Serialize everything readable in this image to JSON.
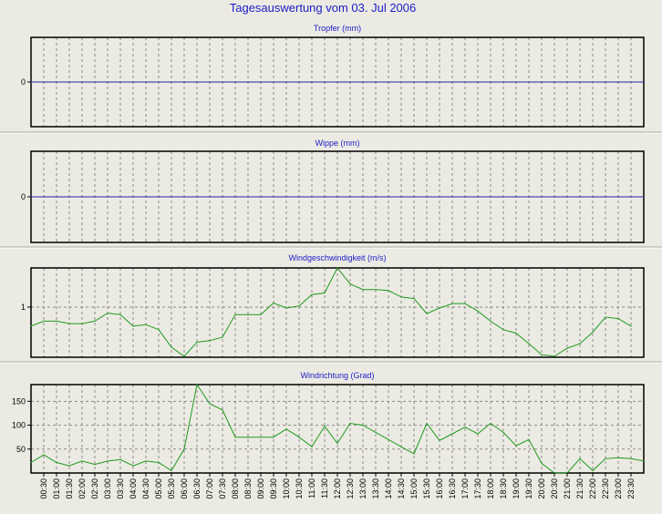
{
  "title": "Tagesauswertung vom 03. Jul 2006",
  "colors": {
    "background": "#ecebe3",
    "title_text": "#1c1cc8",
    "axis_text": "#000000",
    "zero_line": "#2525a8",
    "series_line": "#1f9a1f",
    "grid": "#8a8a8a",
    "frame": "#000000"
  },
  "x_ticks": [
    "00:30",
    "01:00",
    "01:30",
    "02:00",
    "02:30",
    "03:00",
    "03:30",
    "04:00",
    "04:30",
    "05:00",
    "05:30",
    "06:00",
    "06:30",
    "07:00",
    "07:30",
    "08:00",
    "08:30",
    "09:00",
    "09:30",
    "10:00",
    "10:30",
    "11:00",
    "11:30",
    "12:00",
    "12:30",
    "13:00",
    "13:30",
    "14:00",
    "14:30",
    "15:00",
    "15:30",
    "16:00",
    "16:30",
    "17:00",
    "17:30",
    "18:00",
    "18:30",
    "19:00",
    "19:30",
    "20:00",
    "20:30",
    "21:00",
    "21:30",
    "22:00",
    "22:30",
    "23:00",
    "23:30"
  ],
  "chart_data": [
    {
      "type": "line",
      "title": "Tropfer (mm)",
      "y_ticks": [
        0
      ],
      "ylim": [
        -1,
        1
      ],
      "grid": true,
      "series": [
        {
          "values": [
            0,
            0,
            0,
            0,
            0,
            0,
            0,
            0,
            0,
            0,
            0,
            0,
            0,
            0,
            0,
            0,
            0,
            0,
            0,
            0,
            0,
            0,
            0,
            0,
            0,
            0,
            0,
            0,
            0,
            0,
            0,
            0,
            0,
            0,
            0,
            0,
            0,
            0,
            0,
            0,
            0,
            0,
            0,
            0,
            0,
            0,
            0,
            0,
            0
          ]
        }
      ]
    },
    {
      "type": "line",
      "title": "Wippe (mm)",
      "y_ticks": [
        0
      ],
      "ylim": [
        -1,
        1
      ],
      "grid": true,
      "series": [
        {
          "values": [
            0,
            0,
            0,
            0,
            0,
            0,
            0,
            0,
            0,
            0,
            0,
            0,
            0,
            0,
            0,
            0,
            0,
            0,
            0,
            0,
            0,
            0,
            0,
            0,
            0,
            0,
            0,
            0,
            0,
            0,
            0,
            0,
            0,
            0,
            0,
            0,
            0,
            0,
            0,
            0,
            0,
            0,
            0,
            0,
            0,
            0,
            0,
            0,
            0
          ]
        }
      ]
    },
    {
      "type": "line",
      "title": "Windgeschwindigkeit (m/s)",
      "y_ticks": [
        1
      ],
      "ylim": [
        0,
        1.78
      ],
      "grid": true,
      "series": [
        {
          "values": [
            0.62,
            0.72,
            0.72,
            0.67,
            0.67,
            0.72,
            0.88,
            0.85,
            0.62,
            0.65,
            0.55,
            0.2,
            0.02,
            0.3,
            0.33,
            0.4,
            0.85,
            0.85,
            0.85,
            1.08,
            0.98,
            1.02,
            1.25,
            1.28,
            1.78,
            1.46,
            1.35,
            1.35,
            1.33,
            1.2,
            1.17,
            0.87,
            0.98,
            1.07,
            1.07,
            0.92,
            0.72,
            0.55,
            0.48,
            0.27,
            0.05,
            0.02,
            0.18,
            0.27,
            0.5,
            0.8,
            0.77,
            0.62
          ]
        }
      ]
    },
    {
      "type": "line",
      "title": "Windrichtung (Grad)",
      "y_ticks": [
        50,
        100,
        150
      ],
      "ylim": [
        0,
        185
      ],
      "grid": true,
      "series": [
        {
          "values": [
            22,
            38,
            22,
            15,
            25,
            18,
            25,
            28,
            15,
            25,
            22,
            5,
            50,
            185,
            145,
            132,
            75,
            75,
            75,
            75,
            92,
            75,
            55,
            98,
            62,
            104,
            100,
            85,
            70,
            55,
            40,
            104,
            68,
            82,
            96,
            82,
            104,
            85,
            57,
            70,
            20,
            0,
            0,
            30,
            5,
            30,
            32,
            30,
            25
          ]
        }
      ]
    }
  ]
}
